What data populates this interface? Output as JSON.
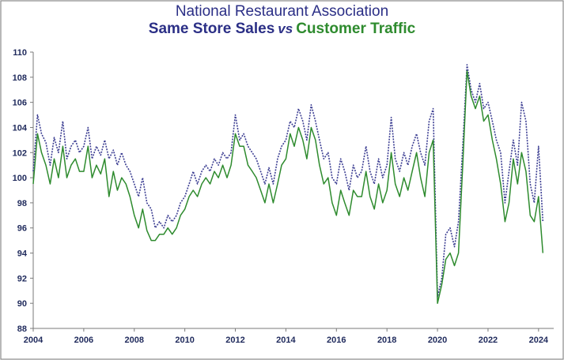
{
  "title": "National Restaurant Association",
  "subtitle_left": "Same Store Sales",
  "subtitle_vs": "vs",
  "subtitle_right": "Customer Traffic",
  "colors": {
    "title": "#2b2f86",
    "sales": "#3d3f93",
    "traffic": "#2e8b2e",
    "axis": "#1f2a5c",
    "frame": "#8a8a8a"
  },
  "chart_data": {
    "type": "line",
    "xlim": [
      2004,
      2024.6
    ],
    "ylim": [
      88,
      110
    ],
    "x_ticks": [
      2004,
      2006,
      2008,
      2010,
      2012,
      2014,
      2016,
      2018,
      2020,
      2022,
      2024
    ],
    "y_ticks": [
      88,
      90,
      92,
      94,
      96,
      98,
      100,
      102,
      104,
      106,
      108,
      110
    ],
    "grid": false,
    "legend": "none",
    "series": [
      {
        "name": "Same Store Sales",
        "style": "dotted",
        "x": [
          2004.0,
          2004.17,
          2004.33,
          2004.5,
          2004.67,
          2004.83,
          2005.0,
          2005.17,
          2005.33,
          2005.5,
          2005.67,
          2005.83,
          2006.0,
          2006.17,
          2006.33,
          2006.5,
          2006.67,
          2006.83,
          2007.0,
          2007.17,
          2007.33,
          2007.5,
          2007.67,
          2007.83,
          2008.0,
          2008.17,
          2008.33,
          2008.5,
          2008.67,
          2008.83,
          2009.0,
          2009.17,
          2009.33,
          2009.5,
          2009.67,
          2009.83,
          2010.0,
          2010.17,
          2010.33,
          2010.5,
          2010.67,
          2010.83,
          2011.0,
          2011.17,
          2011.33,
          2011.5,
          2011.67,
          2011.83,
          2012.0,
          2012.17,
          2012.33,
          2012.5,
          2012.67,
          2012.83,
          2013.0,
          2013.17,
          2013.33,
          2013.5,
          2013.67,
          2013.83,
          2014.0,
          2014.17,
          2014.33,
          2014.5,
          2014.67,
          2014.83,
          2015.0,
          2015.17,
          2015.33,
          2015.5,
          2015.67,
          2015.83,
          2016.0,
          2016.17,
          2016.33,
          2016.5,
          2016.67,
          2016.83,
          2017.0,
          2017.17,
          2017.33,
          2017.5,
          2017.67,
          2017.83,
          2018.0,
          2018.17,
          2018.33,
          2018.5,
          2018.67,
          2018.83,
          2019.0,
          2019.17,
          2019.33,
          2019.5,
          2019.67,
          2019.83,
          2020.0,
          2020.17,
          2020.33,
          2020.5,
          2020.67,
          2020.83,
          2021.0,
          2021.17,
          2021.33,
          2021.5,
          2021.67,
          2021.83,
          2022.0,
          2022.17,
          2022.33,
          2022.5,
          2022.67,
          2022.83,
          2023.0,
          2023.17,
          2023.33,
          2023.5,
          2023.67,
          2023.83,
          2024.0,
          2024.17
        ],
        "y": [
          100.5,
          105.0,
          103.5,
          102.8,
          101.0,
          103.2,
          102.0,
          104.5,
          101.5,
          102.5,
          103.0,
          102.0,
          102.5,
          104.0,
          101.5,
          102.5,
          101.8,
          103.0,
          101.5,
          102.2,
          101.0,
          102.0,
          101.0,
          100.5,
          99.5,
          98.5,
          100.0,
          98.0,
          97.5,
          96.0,
          96.5,
          96.0,
          97.0,
          96.5,
          97.0,
          98.0,
          98.5,
          99.5,
          100.5,
          99.5,
          100.5,
          101.0,
          100.5,
          101.5,
          101.0,
          102.0,
          101.5,
          102.0,
          105.0,
          103.0,
          103.5,
          102.5,
          102.0,
          101.5,
          100.5,
          99.5,
          100.8,
          99.5,
          101.5,
          102.5,
          103.0,
          104.5,
          104.0,
          105.5,
          104.5,
          103.0,
          105.8,
          104.5,
          103.0,
          101.5,
          102.0,
          100.0,
          99.5,
          101.5,
          100.5,
          99.0,
          101.0,
          100.0,
          100.5,
          102.5,
          100.5,
          99.5,
          101.5,
          100.0,
          101.0,
          104.8,
          101.5,
          100.5,
          102.0,
          101.0,
          102.5,
          103.5,
          102.0,
          101.0,
          104.5,
          105.5,
          90.5,
          92.0,
          95.5,
          96.0,
          94.5,
          96.5,
          102.5,
          109.0,
          107.0,
          106.0,
          107.5,
          105.5,
          106.0,
          104.5,
          103.0,
          102.0,
          98.0,
          100.5,
          103.0,
          101.0,
          106.0,
          104.5,
          99.5,
          98.0,
          102.5,
          96.5
        ],
        "color": "#3d3f93"
      },
      {
        "name": "Customer Traffic",
        "style": "solid",
        "x": [
          2004.0,
          2004.17,
          2004.33,
          2004.5,
          2004.67,
          2004.83,
          2005.0,
          2005.17,
          2005.33,
          2005.5,
          2005.67,
          2005.83,
          2006.0,
          2006.17,
          2006.33,
          2006.5,
          2006.67,
          2006.83,
          2007.0,
          2007.17,
          2007.33,
          2007.5,
          2007.67,
          2007.83,
          2008.0,
          2008.17,
          2008.33,
          2008.5,
          2008.67,
          2008.83,
          2009.0,
          2009.17,
          2009.33,
          2009.5,
          2009.67,
          2009.83,
          2010.0,
          2010.17,
          2010.33,
          2010.5,
          2010.67,
          2010.83,
          2011.0,
          2011.17,
          2011.33,
          2011.5,
          2011.67,
          2011.83,
          2012.0,
          2012.17,
          2012.33,
          2012.5,
          2012.67,
          2012.83,
          2013.0,
          2013.17,
          2013.33,
          2013.5,
          2013.67,
          2013.83,
          2014.0,
          2014.17,
          2014.33,
          2014.5,
          2014.67,
          2014.83,
          2015.0,
          2015.17,
          2015.33,
          2015.5,
          2015.67,
          2015.83,
          2016.0,
          2016.17,
          2016.33,
          2016.5,
          2016.67,
          2016.83,
          2017.0,
          2017.17,
          2017.33,
          2017.5,
          2017.67,
          2017.83,
          2018.0,
          2018.17,
          2018.33,
          2018.5,
          2018.67,
          2018.83,
          2019.0,
          2019.17,
          2019.33,
          2019.5,
          2019.67,
          2019.83,
          2020.0,
          2020.17,
          2020.33,
          2020.5,
          2020.67,
          2020.83,
          2021.0,
          2021.17,
          2021.33,
          2021.5,
          2021.67,
          2021.83,
          2022.0,
          2022.17,
          2022.33,
          2022.5,
          2022.67,
          2022.83,
          2023.0,
          2023.17,
          2023.33,
          2023.5,
          2023.67,
          2023.83,
          2024.0,
          2024.17
        ],
        "y": [
          99.5,
          103.5,
          102.0,
          101.0,
          99.5,
          101.5,
          100.0,
          102.5,
          100.0,
          101.0,
          101.5,
          100.5,
          100.5,
          102.5,
          100.0,
          101.0,
          100.3,
          101.5,
          98.5,
          100.5,
          99.0,
          100.0,
          99.5,
          98.5,
          97.0,
          96.0,
          97.5,
          95.8,
          95.0,
          95.0,
          95.5,
          95.5,
          96.0,
          95.5,
          96.0,
          97.0,
          97.5,
          98.5,
          99.0,
          98.5,
          99.5,
          100.0,
          99.5,
          100.5,
          100.0,
          101.0,
          100.0,
          101.0,
          103.5,
          102.5,
          102.5,
          101.0,
          100.5,
          100.0,
          99.0,
          98.0,
          99.5,
          98.0,
          99.5,
          101.0,
          101.5,
          103.5,
          102.5,
          104.0,
          103.0,
          101.5,
          104.0,
          103.0,
          101.0,
          99.5,
          100.0,
          98.0,
          97.0,
          99.0,
          98.0,
          97.0,
          99.0,
          98.5,
          98.5,
          100.5,
          98.5,
          97.5,
          99.5,
          98.0,
          99.0,
          102.0,
          99.5,
          98.5,
          100.0,
          99.0,
          100.5,
          102.0,
          100.0,
          98.5,
          102.0,
          103.0,
          90.0,
          91.5,
          93.5,
          94.0,
          93.0,
          94.0,
          101.0,
          108.5,
          106.5,
          105.5,
          106.5,
          104.5,
          105.0,
          103.0,
          101.5,
          99.5,
          96.5,
          98.0,
          101.5,
          99.5,
          102.0,
          100.5,
          97.0,
          96.5,
          98.5,
          94.0
        ],
        "color": "#2e8b2e"
      }
    ]
  }
}
